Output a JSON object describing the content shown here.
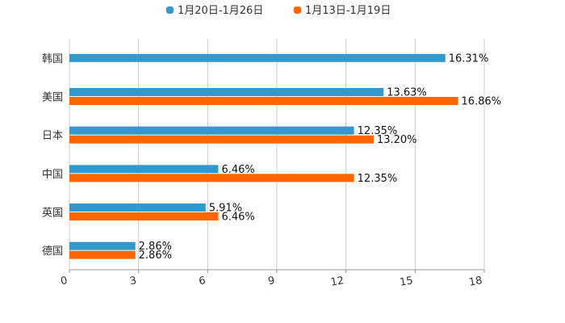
{
  "chart_data": {
    "type": "bar",
    "orientation": "horizontal",
    "categories": [
      "韩国",
      "美国",
      "日本",
      "中国",
      "英国",
      "德国"
    ],
    "series": [
      {
        "name": "1月20日-1月26日",
        "color": "#3399cc",
        "values": [
          16.31,
          13.63,
          12.35,
          6.46,
          5.91,
          2.86
        ],
        "labels": [
          "16.31%",
          "13.63%",
          "12.35%",
          "6.46%",
          "5.91%",
          "2.86%"
        ]
      },
      {
        "name": "1月13日-1月19日",
        "color": "#ff6600",
        "values": [
          null,
          16.86,
          13.2,
          12.35,
          6.46,
          2.86
        ],
        "labels": [
          "",
          "16.86%",
          "13.20%",
          "12.35%",
          "6.46%",
          "2.86%"
        ]
      }
    ],
    "xlim": [
      0,
      18
    ],
    "xticks": [
      "0",
      "3",
      "6",
      "9",
      "12",
      "15",
      "18"
    ],
    "grid": true,
    "legend_position": "top-center",
    "title": "",
    "xlabel": "",
    "ylabel": ""
  }
}
